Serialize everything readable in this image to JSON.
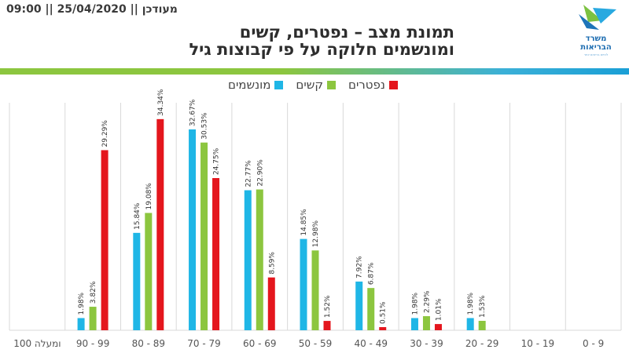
{
  "header": {
    "updated": "מעודכן || 25/04/2020 || 09:00",
    "title_line1": "תמונת מצב – נפטרים, קשים",
    "title_line2": "ומונשמים חלוקה על פי קבוצות גיל"
  },
  "logo": {
    "line1": "משרד",
    "line2": "הבריאות",
    "tagline": "לחיים בריאים יותר",
    "icon": "ministry-of-health-logo-icon"
  },
  "colors": {
    "ventilated": "#1fb6e6",
    "serious": "#8cc63f",
    "deceased": "#e4161d",
    "label": "#333333"
  },
  "chart_data": {
    "type": "bar",
    "categories": [
      "100 ומעלה",
      "90 - 99",
      "80 - 89",
      "70 - 79",
      "60 - 69",
      "50 - 59",
      "40 - 49",
      "30 - 39",
      "20 - 29",
      "10 - 19",
      "0 - 9"
    ],
    "series": [
      {
        "name": "מונשמים",
        "values": [
          null,
          1.98,
          15.84,
          32.67,
          22.77,
          14.85,
          7.92,
          1.98,
          1.98,
          null,
          null
        ],
        "labels": [
          "",
          "1.98%",
          "15.84%",
          "32.67%",
          "22.77%",
          "14.85%",
          "7.92%",
          "1.98%",
          "1.98%",
          "",
          ""
        ]
      },
      {
        "name": "קשים",
        "values": [
          null,
          3.82,
          19.08,
          30.53,
          22.9,
          12.98,
          6.87,
          2.29,
          1.53,
          null,
          null
        ],
        "labels": [
          "",
          "3.82%",
          "19.08%",
          "30.53%",
          "22.90%",
          "12.98%",
          "6.87%",
          "2.29%",
          "1.53%",
          "",
          ""
        ]
      },
      {
        "name": "נפטרים",
        "values": [
          null,
          29.29,
          34.34,
          24.75,
          8.59,
          1.52,
          0.51,
          1.01,
          null,
          null,
          null
        ],
        "labels": [
          "",
          "29.29%",
          "34.34%",
          "24.75%",
          "8.59%",
          "1.52%",
          "0.51%",
          "1.01%",
          "",
          "",
          ""
        ]
      }
    ],
    "legend_order": [
      "נפטרים",
      "קשים",
      "מונשמים"
    ],
    "legend_position": "top",
    "ylim": [
      0,
      37
    ],
    "grid": "vertical-separators"
  }
}
